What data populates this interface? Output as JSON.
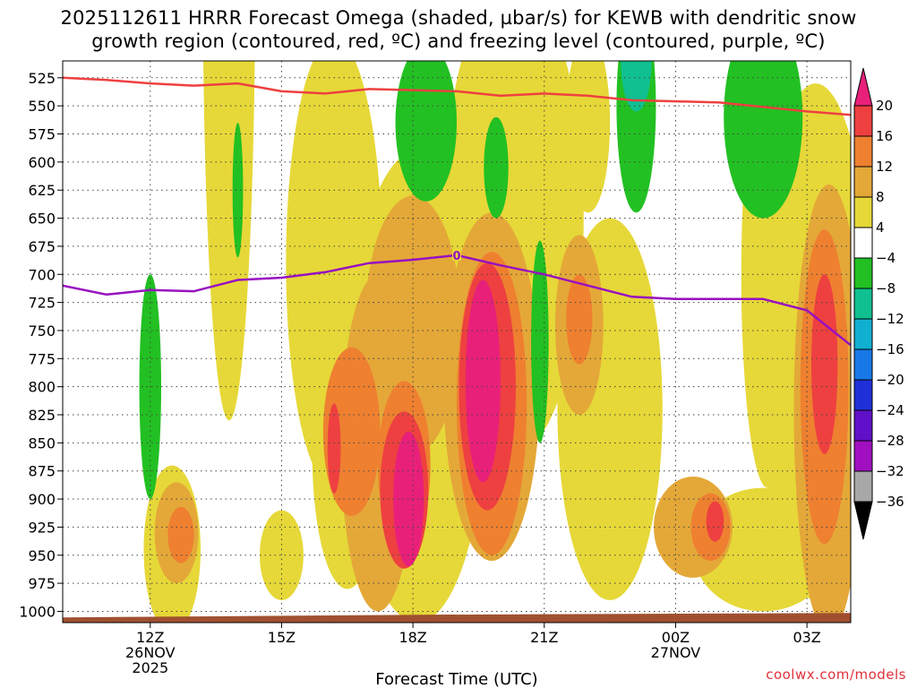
{
  "chart_data": {
    "type": "heatmap",
    "title_line1": "2025112611 HRRR Forecast Omega (shaded, µbar/s) for KEWB with dendritic snow",
    "title_line2": "growth region (contoured, red, ºC) and freezing level (contoured, purple, ºC)",
    "xlabel": "Forecast Time (UTC)",
    "ylabel": "",
    "credit": "coolwx.com/models",
    "x_range": [
      10,
      28
    ],
    "y_range": [
      1010,
      510
    ],
    "x_ticks": [
      {
        "x": 12,
        "label": "12Z",
        "sub1": "26NOV",
        "sub2": "2025"
      },
      {
        "x": 15,
        "label": "15Z",
        "sub1": "",
        "sub2": ""
      },
      {
        "x": 18,
        "label": "18Z",
        "sub1": "",
        "sub2": ""
      },
      {
        "x": 21,
        "label": "21Z",
        "sub1": "",
        "sub2": ""
      },
      {
        "x": 24,
        "label": "00Z",
        "sub1": "27NOV",
        "sub2": ""
      },
      {
        "x": 27,
        "label": "03Z",
        "sub1": "",
        "sub2": ""
      }
    ],
    "y_ticks": [
      525,
      550,
      575,
      600,
      625,
      650,
      675,
      700,
      725,
      750,
      775,
      800,
      825,
      850,
      875,
      900,
      925,
      950,
      975,
      1000
    ],
    "colorbar": {
      "labels": [
        "20",
        "16",
        "12",
        "8",
        "4",
        "−4",
        "−8",
        "−12",
        "−16",
        "−20",
        "−24",
        "−28",
        "−32",
        "−36"
      ],
      "colors": [
        "#e8207a",
        "#ee4040",
        "#ee8030",
        "#e4a838",
        "#e6d838",
        "#ffffff",
        "#22c022",
        "#10c090",
        "#10b0d0",
        "#1878e8",
        "#2030d8",
        "#6010c8",
        "#a010c0",
        "#a8a8a8",
        "#000000"
      ]
    },
    "omega_blobs": [
      {
        "x": 13.8,
        "p": 430,
        "rx": 0.6,
        "rp": 400,
        "v": 4
      },
      {
        "x": 12.5,
        "p": 945,
        "rx": 0.65,
        "rp": 75,
        "v": 4
      },
      {
        "x": 12.6,
        "p": 930,
        "rx": 0.5,
        "rp": 45,
        "v": 8
      },
      {
        "x": 12.7,
        "p": 932,
        "rx": 0.3,
        "rp": 25,
        "v": 12
      },
      {
        "x": 15.0,
        "p": 950,
        "rx": 0.5,
        "rp": 40,
        "v": 4
      },
      {
        "x": 16.2,
        "p": 690,
        "rx": 1.1,
        "rp": 200,
        "v": 4
      },
      {
        "x": 16.5,
        "p": 860,
        "rx": 0.8,
        "rp": 120,
        "v": 4
      },
      {
        "x": 18.1,
        "p": 800,
        "rx": 1.6,
        "rp": 210,
        "v": 4
      },
      {
        "x": 20.3,
        "p": 650,
        "rx": 1.6,
        "rp": 210,
        "v": 4
      },
      {
        "x": 22.0,
        "p": 565,
        "rx": 0.5,
        "rp": 80,
        "v": 4
      },
      {
        "x": 22.5,
        "p": 820,
        "rx": 1.2,
        "rp": 170,
        "v": 4
      },
      {
        "x": 26.1,
        "p": 700,
        "rx": 0.6,
        "rp": 190,
        "v": 4
      },
      {
        "x": 27.2,
        "p": 760,
        "rx": 1.3,
        "rp": 230,
        "v": 4
      },
      {
        "x": 26.0,
        "p": 945,
        "rx": 1.6,
        "rp": 55,
        "v": 4
      },
      {
        "x": 17.2,
        "p": 850,
        "rx": 0.85,
        "rp": 150,
        "v": 8
      },
      {
        "x": 18.0,
        "p": 745,
        "rx": 1.1,
        "rp": 115,
        "v": 8
      },
      {
        "x": 19.8,
        "p": 800,
        "rx": 1.1,
        "rp": 155,
        "v": 8
      },
      {
        "x": 21.8,
        "p": 745,
        "rx": 0.55,
        "rp": 80,
        "v": 8
      },
      {
        "x": 24.4,
        "p": 925,
        "rx": 0.9,
        "rp": 45,
        "v": 8
      },
      {
        "x": 27.5,
        "p": 820,
        "rx": 0.8,
        "rp": 200,
        "v": 8
      },
      {
        "x": 16.6,
        "p": 840,
        "rx": 0.65,
        "rp": 75,
        "v": 12
      },
      {
        "x": 17.8,
        "p": 870,
        "rx": 0.6,
        "rp": 75,
        "v": 12
      },
      {
        "x": 19.8,
        "p": 815,
        "rx": 0.8,
        "rp": 135,
        "v": 12
      },
      {
        "x": 21.8,
        "p": 740,
        "rx": 0.3,
        "rp": 40,
        "v": 12
      },
      {
        "x": 24.8,
        "p": 925,
        "rx": 0.45,
        "rp": 30,
        "v": 12
      },
      {
        "x": 27.4,
        "p": 800,
        "rx": 0.55,
        "rp": 140,
        "v": 12
      },
      {
        "x": 16.2,
        "p": 855,
        "rx": 0.15,
        "rp": 40,
        "v": 16
      },
      {
        "x": 17.8,
        "p": 892,
        "rx": 0.55,
        "rp": 70,
        "v": 16
      },
      {
        "x": 19.7,
        "p": 800,
        "rx": 0.65,
        "rp": 110,
        "v": 16
      },
      {
        "x": 24.9,
        "p": 920,
        "rx": 0.2,
        "rp": 18,
        "v": 16
      },
      {
        "x": 27.4,
        "p": 780,
        "rx": 0.3,
        "rp": 80,
        "v": 16
      },
      {
        "x": 17.9,
        "p": 900,
        "rx": 0.35,
        "rp": 60,
        "v": 20
      },
      {
        "x": 19.6,
        "p": 795,
        "rx": 0.4,
        "rp": 90,
        "v": 20
      },
      {
        "x": 18.3,
        "p": 565,
        "rx": 0.7,
        "rp": 70,
        "v": -4
      },
      {
        "x": 20.9,
        "p": 760,
        "rx": 0.2,
        "rp": 90,
        "v": -4
      },
      {
        "x": 26.0,
        "p": 560,
        "rx": 0.9,
        "rp": 90,
        "v": -4
      },
      {
        "x": 12.0,
        "p": 800,
        "rx": 0.25,
        "rp": 100,
        "v": -4
      },
      {
        "x": 14.0,
        "p": 625,
        "rx": 0.12,
        "rp": 60,
        "v": -8
      },
      {
        "x": 19.9,
        "p": 605,
        "rx": 0.28,
        "rp": 45,
        "v": -8
      },
      {
        "x": 20.9,
        "p": 790,
        "rx": 0.15,
        "rp": 40,
        "v": -8
      },
      {
        "x": 23.1,
        "p": 550,
        "rx": 0.45,
        "rp": 95,
        "v": -8
      },
      {
        "x": 25.9,
        "p": 510,
        "rx": 0.15,
        "rp": 40,
        "v": -8
      },
      {
        "x": 23.1,
        "p": 510,
        "rx": 0.35,
        "rp": 45,
        "v": -12
      }
    ],
    "dgz_line": {
      "color": "#ee4040",
      "x": [
        10,
        11,
        12,
        13,
        14,
        15,
        16,
        17,
        18,
        19,
        20,
        21,
        22,
        23,
        24,
        25,
        26,
        27,
        28
      ],
      "p": [
        525,
        527,
        530,
        532,
        530,
        537,
        539,
        535,
        536,
        537,
        541,
        539,
        541,
        545,
        546,
        547,
        551,
        555,
        558
      ]
    },
    "freezing_line": {
      "color": "#9810c0",
      "label": "0",
      "label_x": 19.0,
      "x": [
        10,
        11,
        12,
        13,
        14,
        15,
        16,
        17,
        18,
        19,
        20,
        21,
        22,
        23,
        24,
        25,
        26,
        27,
        28
      ],
      "p": [
        710,
        718,
        714,
        715,
        705,
        703,
        698,
        690,
        687,
        683,
        692,
        700,
        710,
        720,
        722,
        722,
        722,
        732,
        763
      ]
    },
    "ground_color": "#a05030"
  }
}
